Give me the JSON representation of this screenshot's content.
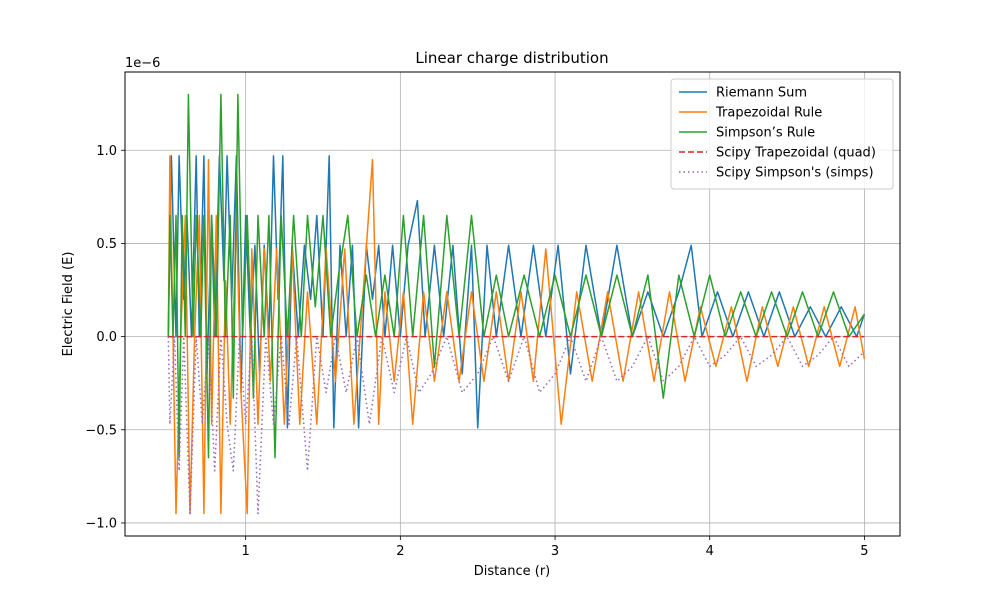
{
  "chart_data": {
    "type": "line",
    "title": "Linear charge distribution",
    "xlabel": "Distance (r)",
    "ylabel": "Electric Field (E)",
    "y_multiplier_label": "1e−6",
    "xlim": [
      0.22,
      5.23
    ],
    "ylim": [
      -1.07,
      1.42
    ],
    "x_ticks": [
      1,
      2,
      3,
      4,
      5
    ],
    "x_tick_labels": [
      "1",
      "2",
      "3",
      "4",
      "5"
    ],
    "y_ticks": [
      -1.0,
      -0.5,
      0.0,
      0.5,
      1.0
    ],
    "y_tick_labels": [
      "−1.0",
      "−0.5",
      "0.0",
      "0.5",
      "1.0"
    ],
    "grid": true,
    "legend_position": "top-right",
    "x_range": [
      0.5,
      5.0
    ],
    "series": [
      {
        "name": "Riemann Sum",
        "color": "#1f77b4",
        "style": "solid",
        "values": [
          [
            0.5,
            0.0
          ],
          [
            0.52,
            0.97
          ],
          [
            0.55,
            0.0
          ],
          [
            0.57,
            0.97
          ],
          [
            0.6,
            0.2
          ],
          [
            0.62,
            0.65
          ],
          [
            0.65,
            0.0
          ],
          [
            0.68,
            0.97
          ],
          [
            0.7,
            0.0
          ],
          [
            0.73,
            0.97
          ],
          [
            0.75,
            -0.2
          ],
          [
            0.78,
            0.65
          ],
          [
            0.8,
            0.0
          ],
          [
            0.83,
            0.97
          ],
          [
            0.86,
            0.3
          ],
          [
            0.88,
            0.97
          ],
          [
            0.91,
            0.2
          ],
          [
            0.94,
            0.97
          ],
          [
            0.97,
            -0.3
          ],
          [
            1.0,
            0.65
          ],
          [
            1.03,
            0.0
          ],
          [
            1.06,
            0.49
          ],
          [
            1.09,
            -0.2
          ],
          [
            1.12,
            0.49
          ],
          [
            1.15,
            0.0
          ],
          [
            1.18,
            0.97
          ],
          [
            1.21,
            0.2
          ],
          [
            1.24,
            0.97
          ],
          [
            1.27,
            -0.49
          ],
          [
            1.3,
            0.49
          ],
          [
            1.34,
            0.0
          ],
          [
            1.38,
            0.49
          ],
          [
            1.42,
            0.2
          ],
          [
            1.46,
            0.65
          ],
          [
            1.5,
            0.0
          ],
          [
            1.54,
            0.97
          ],
          [
            1.57,
            -0.49
          ],
          [
            1.61,
            0.49
          ],
          [
            1.65,
            0.0
          ],
          [
            1.69,
            0.49
          ],
          [
            1.73,
            -0.49
          ],
          [
            1.78,
            0.49
          ],
          [
            1.82,
            0.2
          ],
          [
            1.86,
            0.49
          ],
          [
            1.9,
            0.0
          ],
          [
            1.95,
            0.49
          ],
          [
            2.0,
            0.0
          ],
          [
            2.05,
            0.49
          ],
          [
            2.11,
            0.73
          ],
          [
            2.16,
            0.0
          ],
          [
            2.22,
            0.49
          ],
          [
            2.28,
            0.0
          ],
          [
            2.34,
            0.49
          ],
          [
            2.4,
            -0.2
          ],
          [
            2.46,
            0.49
          ],
          [
            2.5,
            -0.49
          ],
          [
            2.56,
            0.49
          ],
          [
            2.62,
            0.0
          ],
          [
            2.7,
            0.49
          ],
          [
            2.78,
            0.0
          ],
          [
            2.86,
            0.49
          ],
          [
            2.94,
            0.0
          ],
          [
            3.02,
            0.49
          ],
          [
            3.1,
            -0.2
          ],
          [
            3.2,
            0.49
          ],
          [
            3.3,
            0.0
          ],
          [
            3.4,
            0.49
          ],
          [
            3.5,
            0.0
          ],
          [
            3.6,
            0.24
          ],
          [
            3.7,
            0.0
          ],
          [
            3.8,
            0.24
          ],
          [
            3.88,
            0.49
          ],
          [
            3.95,
            0.0
          ],
          [
            4.05,
            0.24
          ],
          [
            4.15,
            0.0
          ],
          [
            4.25,
            0.24
          ],
          [
            4.35,
            0.0
          ],
          [
            4.45,
            0.24
          ],
          [
            4.55,
            0.0
          ],
          [
            4.65,
            0.16
          ],
          [
            4.75,
            0.0
          ],
          [
            4.85,
            0.16
          ],
          [
            4.95,
            0.0
          ],
          [
            5.0,
            0.12
          ]
        ]
      },
      {
        "name": "Trapezoidal Rule",
        "color": "#ff7f0e",
        "style": "solid",
        "values": [
          [
            0.5,
            0.0
          ],
          [
            0.51,
            0.97
          ],
          [
            0.53,
            0.0
          ],
          [
            0.55,
            -0.95
          ],
          [
            0.58,
            0.0
          ],
          [
            0.61,
            0.65
          ],
          [
            0.64,
            -0.95
          ],
          [
            0.67,
            0.0
          ],
          [
            0.7,
            0.65
          ],
          [
            0.73,
            -0.95
          ],
          [
            0.76,
            0.95
          ],
          [
            0.78,
            -0.47
          ],
          [
            0.81,
            0.65
          ],
          [
            0.84,
            -0.95
          ],
          [
            0.87,
            0.3
          ],
          [
            0.9,
            -0.47
          ],
          [
            0.94,
            0.65
          ],
          [
            0.97,
            -0.3
          ],
          [
            1.01,
            -0.95
          ],
          [
            1.04,
            0.47
          ],
          [
            1.08,
            -0.47
          ],
          [
            1.12,
            0.47
          ],
          [
            1.16,
            -0.24
          ],
          [
            1.2,
            0.47
          ],
          [
            1.25,
            -0.47
          ],
          [
            1.3,
            0.47
          ],
          [
            1.35,
            -0.47
          ],
          [
            1.4,
            0.24
          ],
          [
            1.46,
            -0.47
          ],
          [
            1.52,
            0.47
          ],
          [
            1.58,
            -0.24
          ],
          [
            1.64,
            0.47
          ],
          [
            1.7,
            -0.47
          ],
          [
            1.76,
            0.24
          ],
          [
            1.82,
            0.95
          ],
          [
            1.86,
            -0.47
          ],
          [
            1.9,
            0.24
          ],
          [
            1.96,
            -0.24
          ],
          [
            2.02,
            0.24
          ],
          [
            2.08,
            -0.47
          ],
          [
            2.15,
            0.24
          ],
          [
            2.22,
            -0.24
          ],
          [
            2.3,
            0.24
          ],
          [
            2.38,
            -0.24
          ],
          [
            2.46,
            0.24
          ],
          [
            2.54,
            -0.24
          ],
          [
            2.62,
            0.24
          ],
          [
            2.7,
            -0.24
          ],
          [
            2.78,
            0.24
          ],
          [
            2.86,
            -0.24
          ],
          [
            2.94,
            0.47
          ],
          [
            3.04,
            -0.47
          ],
          [
            3.14,
            0.24
          ],
          [
            3.24,
            -0.24
          ],
          [
            3.34,
            0.24
          ],
          [
            3.44,
            -0.24
          ],
          [
            3.54,
            0.24
          ],
          [
            3.64,
            -0.24
          ],
          [
            3.74,
            0.24
          ],
          [
            3.84,
            -0.24
          ],
          [
            3.94,
            0.16
          ],
          [
            4.04,
            -0.16
          ],
          [
            4.14,
            0.16
          ],
          [
            4.24,
            -0.24
          ],
          [
            4.34,
            0.16
          ],
          [
            4.44,
            -0.16
          ],
          [
            4.54,
            0.16
          ],
          [
            4.64,
            -0.16
          ],
          [
            4.74,
            0.16
          ],
          [
            4.84,
            -0.16
          ],
          [
            4.94,
            0.16
          ],
          [
            5.0,
            -0.12
          ]
        ]
      },
      {
        "name": "Simpson’s Rule",
        "color": "#2ca02c",
        "style": "solid",
        "values": [
          [
            0.5,
            0.0
          ],
          [
            0.51,
            0.65
          ],
          [
            0.53,
            0.0
          ],
          [
            0.55,
            0.65
          ],
          [
            0.57,
            -0.65
          ],
          [
            0.59,
            0.65
          ],
          [
            0.61,
            0.0
          ],
          [
            0.63,
            1.3
          ],
          [
            0.66,
            0.0
          ],
          [
            0.68,
            0.65
          ],
          [
            0.71,
            0.0
          ],
          [
            0.73,
            0.65
          ],
          [
            0.76,
            -0.65
          ],
          [
            0.78,
            0.65
          ],
          [
            0.81,
            0.0
          ],
          [
            0.84,
            1.3
          ],
          [
            0.87,
            0.0
          ],
          [
            0.9,
            0.65
          ],
          [
            0.92,
            -0.33
          ],
          [
            0.95,
            1.3
          ],
          [
            0.98,
            0.0
          ],
          [
            1.01,
            0.65
          ],
          [
            1.05,
            -0.33
          ],
          [
            1.08,
            0.65
          ],
          [
            1.12,
            0.0
          ],
          [
            1.15,
            0.65
          ],
          [
            1.19,
            -0.65
          ],
          [
            1.23,
            0.65
          ],
          [
            1.27,
            0.0
          ],
          [
            1.31,
            0.65
          ],
          [
            1.36,
            0.0
          ],
          [
            1.4,
            0.65
          ],
          [
            1.45,
            0.16
          ],
          [
            1.5,
            0.65
          ],
          [
            1.55,
            0.0
          ],
          [
            1.6,
            0.33
          ],
          [
            1.66,
            0.65
          ],
          [
            1.72,
            0.0
          ],
          [
            1.78,
            0.33
          ],
          [
            1.84,
            0.0
          ],
          [
            1.9,
            0.33
          ],
          [
            1.96,
            0.0
          ],
          [
            2.02,
            0.65
          ],
          [
            2.08,
            0.0
          ],
          [
            2.15,
            0.65
          ],
          [
            2.22,
            -0.16
          ],
          [
            2.3,
            0.65
          ],
          [
            2.38,
            0.0
          ],
          [
            2.46,
            0.65
          ],
          [
            2.54,
            0.0
          ],
          [
            2.62,
            0.33
          ],
          [
            2.7,
            0.0
          ],
          [
            2.8,
            0.33
          ],
          [
            2.9,
            0.0
          ],
          [
            3.0,
            0.33
          ],
          [
            3.1,
            0.0
          ],
          [
            3.2,
            0.33
          ],
          [
            3.3,
            0.0
          ],
          [
            3.4,
            0.33
          ],
          [
            3.5,
            0.0
          ],
          [
            3.6,
            0.33
          ],
          [
            3.7,
            -0.33
          ],
          [
            3.8,
            0.33
          ],
          [
            3.9,
            0.0
          ],
          [
            4.0,
            0.33
          ],
          [
            4.1,
            0.0
          ],
          [
            4.2,
            0.24
          ],
          [
            4.3,
            0.0
          ],
          [
            4.4,
            0.24
          ],
          [
            4.5,
            0.0
          ],
          [
            4.6,
            0.24
          ],
          [
            4.7,
            0.0
          ],
          [
            4.8,
            0.24
          ],
          [
            4.9,
            0.0
          ],
          [
            5.0,
            0.12
          ]
        ]
      },
      {
        "name": "Scipy Trapezoidal (quad)",
        "color": "#d62728",
        "style": "dashed",
        "values": [
          [
            0.5,
            0.0
          ],
          [
            5.0,
            0.0
          ]
        ]
      },
      {
        "name": "Scipy Simpson's (simps)",
        "color": "#9467bd",
        "style": "dotted",
        "values": [
          [
            0.5,
            0.0
          ],
          [
            0.51,
            -0.47
          ],
          [
            0.54,
            0.0
          ],
          [
            0.57,
            -0.72
          ],
          [
            0.6,
            0.0
          ],
          [
            0.64,
            -0.95
          ],
          [
            0.68,
            0.0
          ],
          [
            0.72,
            -0.47
          ],
          [
            0.76,
            0.0
          ],
          [
            0.8,
            -0.72
          ],
          [
            0.84,
            0.0
          ],
          [
            0.88,
            -0.47
          ],
          [
            0.92,
            -0.72
          ],
          [
            0.96,
            0.0
          ],
          [
            1.0,
            -0.47
          ],
          [
            1.04,
            0.0
          ],
          [
            1.08,
            -0.95
          ],
          [
            1.13,
            0.0
          ],
          [
            1.18,
            -0.47
          ],
          [
            1.23,
            0.0
          ],
          [
            1.28,
            -0.47
          ],
          [
            1.33,
            0.0
          ],
          [
            1.4,
            -0.72
          ],
          [
            1.46,
            0.0
          ],
          [
            1.52,
            -0.3
          ],
          [
            1.58,
            0.0
          ],
          [
            1.65,
            -0.3
          ],
          [
            1.72,
            0.0
          ],
          [
            1.8,
            -0.47
          ],
          [
            1.88,
            0.0
          ],
          [
            1.96,
            -0.3
          ],
          [
            2.04,
            0.0
          ],
          [
            2.12,
            -0.3
          ],
          [
            2.2,
            -0.2
          ],
          [
            2.3,
            0.0
          ],
          [
            2.4,
            -0.3
          ],
          [
            2.5,
            -0.2
          ],
          [
            2.6,
            0.0
          ],
          [
            2.7,
            -0.24
          ],
          [
            2.8,
            0.0
          ],
          [
            2.9,
            -0.3
          ],
          [
            3.0,
            -0.2
          ],
          [
            3.1,
            0.0
          ],
          [
            3.2,
            -0.24
          ],
          [
            3.3,
            0.0
          ],
          [
            3.4,
            -0.24
          ],
          [
            3.5,
            -0.16
          ],
          [
            3.6,
            0.0
          ],
          [
            3.7,
            -0.24
          ],
          [
            3.8,
            -0.16
          ],
          [
            3.9,
            0.0
          ],
          [
            4.0,
            -0.16
          ],
          [
            4.1,
            -0.1
          ],
          [
            4.2,
            0.0
          ],
          [
            4.3,
            -0.16
          ],
          [
            4.4,
            -0.1
          ],
          [
            4.5,
            0.0
          ],
          [
            4.6,
            -0.16
          ],
          [
            4.7,
            -0.1
          ],
          [
            4.8,
            0.0
          ],
          [
            4.9,
            -0.16
          ],
          [
            5.0,
            -0.08
          ]
        ]
      }
    ]
  }
}
